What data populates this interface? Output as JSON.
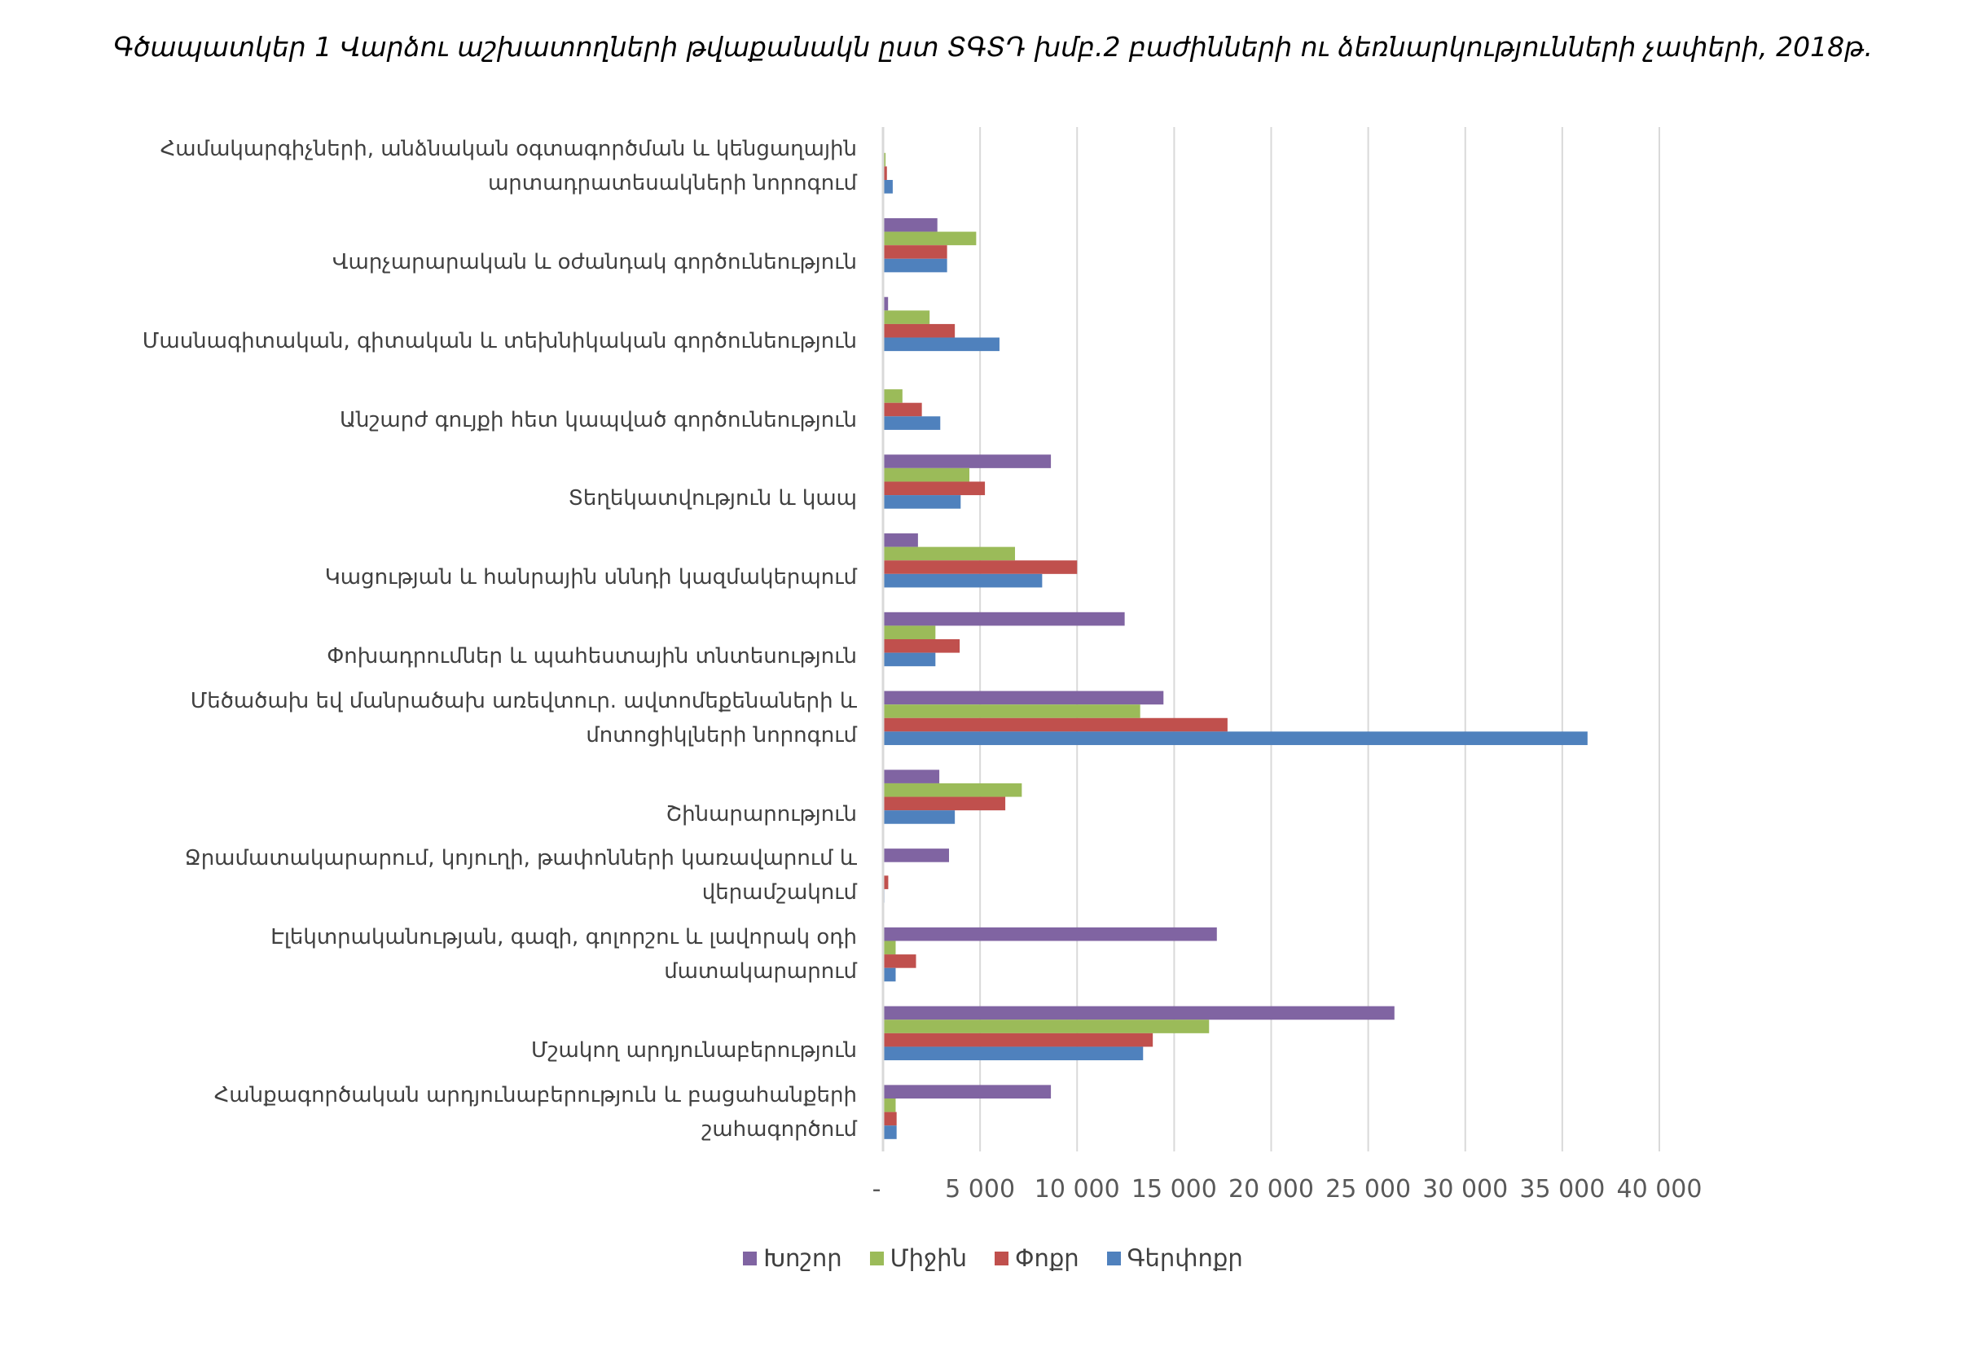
{
  "chart_data": {
    "type": "bar",
    "orientation": "horizontal",
    "title": "Գծապատկեր 1 Վարձու աշխատողների թվաքանակն ըստ ՏԳՏԴ խմբ.2 բաժինների ու ձեռնարկությունների չափերի, 2018թ.",
    "categories": [
      [
        "Համակարգիչների, անձնական օգտագործման և կենցաղային",
        "արտադրատեսակների նորոգում"
      ],
      [
        "Վարչարարական և օժանդակ գործունեություն"
      ],
      [
        "Մասնագիտական, գիտական և տեխնիկական գործունեություն"
      ],
      [
        "Անշարժ գույքի հետ կապված գործունեություն"
      ],
      [
        "Տեղեկատվություն և կապ"
      ],
      [
        "Կացության և հանրային սննդի կազմակերպում"
      ],
      [
        "Փոխադրումներ և պահեստային տնտեսություն"
      ],
      [
        "Մեծածախ եվ մանրածախ առեվտուր. ավտոմեքենաների և",
        "մոտոցիկլների նորոգում"
      ],
      [
        "Շինարարություն"
      ],
      [
        "Ջրամատակարարում, կոյուղի, թափոնների կառավարում և",
        "վերամշակում"
      ],
      [
        "Էլեկտրականության, գազի, գոլորշու և լավորակ օդի",
        "մատակարարում"
      ],
      [
        "Մշակող արդյունաբերություն"
      ],
      [
        "Հանքագործական արդյունաբերություն և բացահանքերի",
        "շահագործում"
      ]
    ],
    "series": [
      {
        "name": "Խոշոր",
        "color": "#8064a2",
        "values": [
          0,
          2800,
          260,
          0,
          8650,
          1800,
          12450,
          14450,
          2900,
          3400,
          17200,
          26350,
          8650
        ]
      },
      {
        "name": "Միջին",
        "color": "#9bbb59",
        "values": [
          130,
          4800,
          2400,
          1000,
          4450,
          6800,
          2700,
          13250,
          7150,
          0,
          650,
          16800,
          650
        ]
      },
      {
        "name": "Փոքր",
        "color": "#c0504d",
        "values": [
          200,
          3300,
          3700,
          2000,
          5250,
          10000,
          3950,
          17750,
          6300,
          270,
          1700,
          13900,
          700
        ]
      },
      {
        "name": "Գերփոքր",
        "color": "#4f81bd",
        "values": [
          500,
          3300,
          6000,
          2950,
          4000,
          8200,
          2700,
          36300,
          3700,
          70,
          650,
          13400,
          700
        ]
      }
    ],
    "xlim": [
      0,
      40000
    ],
    "xticks": [
      0,
      5000,
      10000,
      15000,
      20000,
      25000,
      30000,
      35000,
      40000
    ],
    "xtick_labels": [
      "-",
      "5 000",
      "10 000",
      "15 000",
      "20 000",
      "25 000",
      "30 000",
      "35 000",
      "40 000"
    ],
    "grid": true,
    "legend_position": "bottom",
    "xlabel": "",
    "ylabel": ""
  }
}
